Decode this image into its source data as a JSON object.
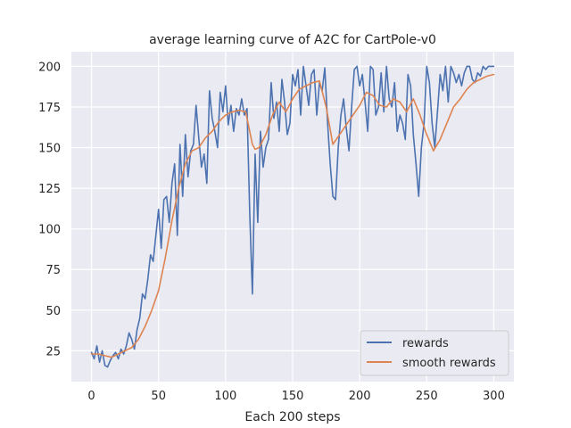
{
  "chart_data": {
    "type": "line",
    "title": "average learning curve of A2C for CartPole-v0",
    "xlabel": "Each 200 steps",
    "ylabel": "",
    "xlim": [
      -15,
      315
    ],
    "ylim": [
      6,
      209
    ],
    "xticks": [
      0,
      50,
      100,
      150,
      200,
      250,
      300
    ],
    "yticks": [
      25,
      50,
      75,
      100,
      125,
      150,
      175,
      200
    ],
    "grid": true,
    "legend_position": "lower-right",
    "series": [
      {
        "name": "rewards",
        "color": "#4c72b0",
        "x": [
          0,
          2,
          4,
          6,
          8,
          10,
          12,
          14,
          16,
          18,
          20,
          22,
          24,
          26,
          28,
          30,
          32,
          34,
          36,
          38,
          40,
          42,
          44,
          46,
          48,
          50,
          52,
          54,
          56,
          58,
          60,
          62,
          64,
          66,
          68,
          70,
          72,
          74,
          76,
          78,
          80,
          82,
          84,
          86,
          88,
          90,
          92,
          94,
          96,
          98,
          100,
          102,
          104,
          106,
          108,
          110,
          112,
          114,
          116,
          118,
          120,
          122,
          124,
          126,
          128,
          130,
          132,
          134,
          136,
          138,
          140,
          142,
          144,
          146,
          148,
          150,
          152,
          154,
          156,
          158,
          160,
          162,
          164,
          166,
          168,
          170,
          172,
          174,
          176,
          178,
          180,
          182,
          184,
          186,
          188,
          190,
          192,
          194,
          196,
          198,
          200,
          202,
          204,
          206,
          208,
          210,
          212,
          214,
          216,
          218,
          220,
          222,
          224,
          226,
          228,
          230,
          232,
          234,
          236,
          238,
          240,
          242,
          244,
          246,
          248,
          250,
          252,
          254,
          256,
          258,
          260,
          262,
          264,
          266,
          268,
          270,
          272,
          274,
          276,
          278,
          280,
          282,
          284,
          286,
          288,
          290,
          292,
          294,
          296,
          298,
          300
        ],
        "values": [
          24,
          20,
          28,
          18,
          25,
          16,
          15,
          19,
          22,
          24,
          20,
          26,
          23,
          28,
          36,
          32,
          26,
          38,
          45,
          60,
          57,
          69,
          84,
          80,
          96,
          112,
          88,
          118,
          120,
          104,
          128,
          140,
          96,
          152,
          120,
          158,
          132,
          148,
          152,
          176,
          156,
          138,
          146,
          128,
          185,
          168,
          160,
          150,
          184,
          172,
          188,
          164,
          176,
          160,
          174,
          170,
          180,
          170,
          174,
          110,
          60,
          146,
          104,
          160,
          138,
          150,
          155,
          190,
          168,
          178,
          160,
          192,
          178,
          158,
          165,
          195,
          188,
          198,
          170,
          200,
          188,
          176,
          195,
          198,
          170,
          190,
          185,
          199,
          166,
          140,
          120,
          118,
          150,
          170,
          180,
          162,
          148,
          175,
          198,
          200,
          188,
          195,
          178,
          160,
          200,
          198,
          170,
          175,
          196,
          172,
          200,
          180,
          175,
          190,
          160,
          170,
          165,
          155,
          195,
          188,
          158,
          140,
          120,
          150,
          165,
          200,
          190,
          165,
          150,
          172,
          195,
          185,
          200,
          178,
          200,
          196,
          190,
          195,
          188,
          196,
          200,
          200,
          192,
          190,
          196,
          194,
          200,
          198,
          200,
          200,
          200
        ]
      },
      {
        "name": "smooth rewards",
        "color": "#dd8452",
        "x": [
          0,
          5,
          10,
          15,
          20,
          25,
          30,
          35,
          40,
          45,
          50,
          55,
          60,
          65,
          70,
          75,
          80,
          85,
          90,
          95,
          100,
          105,
          110,
          115,
          118,
          120,
          122,
          125,
          130,
          135,
          140,
          145,
          150,
          155,
          160,
          165,
          170,
          175,
          180,
          185,
          190,
          195,
          200,
          205,
          210,
          215,
          220,
          225,
          230,
          235,
          240,
          245,
          250,
          255,
          260,
          265,
          270,
          275,
          280,
          285,
          290,
          295,
          300
        ],
        "values": [
          23,
          23,
          22,
          21,
          23,
          25,
          27,
          32,
          40,
          50,
          62,
          82,
          105,
          125,
          140,
          148,
          150,
          156,
          160,
          166,
          170,
          172,
          173,
          172,
          160,
          152,
          149,
          150,
          158,
          170,
          178,
          172,
          180,
          186,
          188,
          190,
          191,
          175,
          152,
          158,
          164,
          170,
          176,
          184,
          182,
          176,
          175,
          180,
          178,
          172,
          180,
          170,
          158,
          148,
          155,
          165,
          175,
          180,
          186,
          190,
          192,
          194,
          195
        ]
      }
    ]
  }
}
